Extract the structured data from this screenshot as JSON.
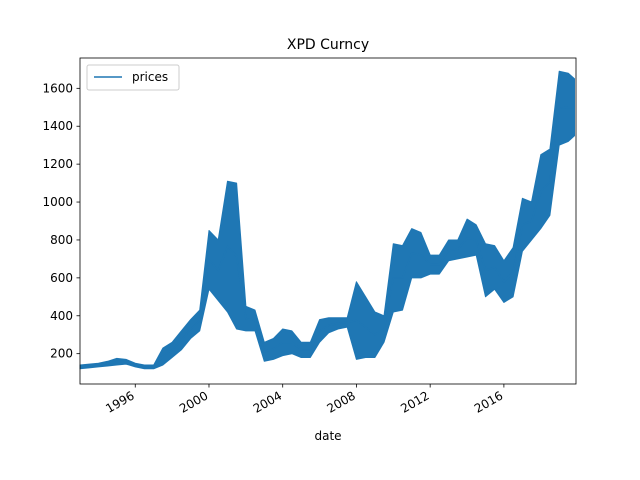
{
  "chart_data": {
    "type": "line",
    "title": "XPD Curncy",
    "xlabel": "date",
    "ylabel": "",
    "xlim": [
      "1993-01-01",
      "2019-11-30"
    ],
    "ylim": [
      40,
      1760
    ],
    "grid": false,
    "legend_position": "top-left",
    "x_ticks": [
      "1996",
      "2000",
      "2004",
      "2008",
      "2012",
      "2016"
    ],
    "y_ticks": [
      200,
      400,
      600,
      800,
      1000,
      1200,
      1400,
      1600
    ],
    "series": [
      {
        "name": "prices",
        "color": "#1f77b4",
        "x": [
          "1993-01",
          "1993-07",
          "1994-01",
          "1994-07",
          "1995-01",
          "1995-07",
          "1996-01",
          "1996-07",
          "1997-01",
          "1997-07",
          "1998-01",
          "1998-07",
          "1999-01",
          "1999-07",
          "2000-01",
          "2000-07",
          "2001-01",
          "2001-07",
          "2002-01",
          "2002-07",
          "2003-01",
          "2003-07",
          "2004-01",
          "2004-07",
          "2005-01",
          "2005-07",
          "2006-01",
          "2006-07",
          "2007-01",
          "2007-07",
          "2008-01",
          "2008-07",
          "2009-01",
          "2009-07",
          "2010-01",
          "2010-07",
          "2011-01",
          "2011-07",
          "2012-01",
          "2012-07",
          "2013-01",
          "2013-07",
          "2014-01",
          "2014-07",
          "2015-01",
          "2015-07",
          "2016-01",
          "2016-07",
          "2017-01",
          "2017-07",
          "2018-01",
          "2018-07",
          "2019-01",
          "2019-07",
          "2019-11"
        ],
        "low": [
          120,
          125,
          130,
          135,
          140,
          145,
          130,
          120,
          120,
          140,
          180,
          220,
          280,
          320,
          540,
          480,
          420,
          330,
          320,
          320,
          160,
          170,
          190,
          200,
          180,
          180,
          260,
          310,
          330,
          340,
          170,
          180,
          180,
          260,
          420,
          430,
          600,
          600,
          620,
          620,
          690,
          700,
          710,
          720,
          500,
          540,
          470,
          500,
          740,
          800,
          860,
          930,
          1300,
          1320,
          1350
        ],
        "high": [
          140,
          145,
          150,
          160,
          175,
          170,
          150,
          140,
          140,
          230,
          260,
          320,
          380,
          430,
          850,
          800,
          1110,
          1100,
          450,
          430,
          260,
          280,
          330,
          320,
          260,
          260,
          380,
          390,
          390,
          390,
          580,
          500,
          420,
          400,
          780,
          770,
          860,
          840,
          720,
          720,
          800,
          800,
          910,
          880,
          780,
          770,
          690,
          760,
          1020,
          1000,
          1250,
          1280,
          1690,
          1680,
          1650
        ]
      }
    ]
  }
}
